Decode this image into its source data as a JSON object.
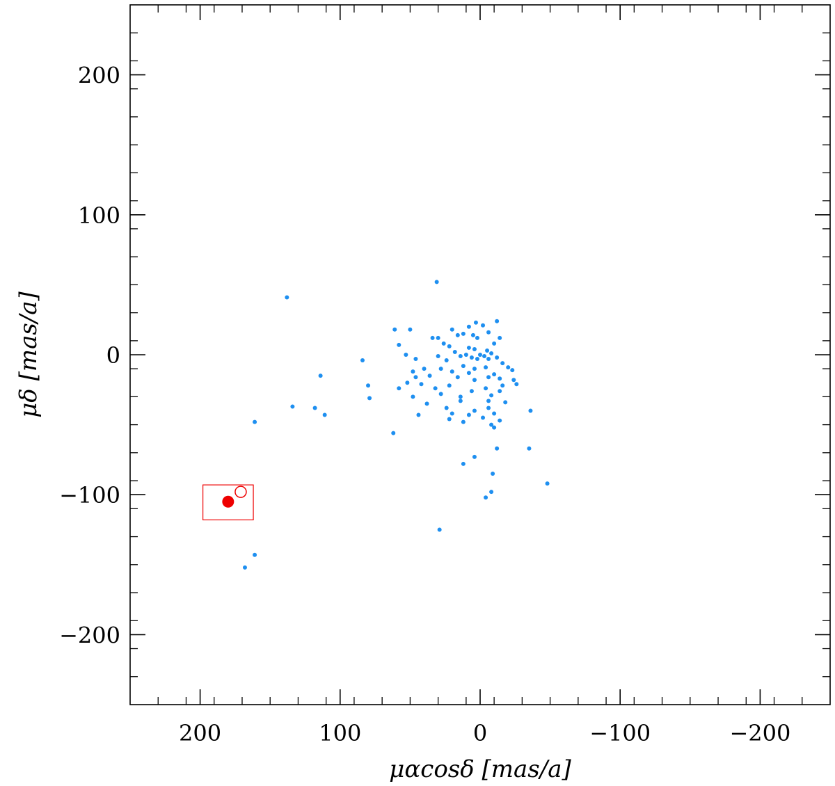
{
  "chart_data": {
    "type": "scatter",
    "title": "",
    "xlabel": "μαcosδ [mas/a]",
    "ylabel": "μδ [mas/a]",
    "xlim": [
      250,
      -250
    ],
    "ylim": [
      -250,
      250
    ],
    "x_reversed": true,
    "grid": false,
    "major_ticks": [
      200,
      100,
      0,
      -100,
      -200
    ],
    "minor_tick_step": 20,
    "x_tick_labels": [
      "200",
      "100",
      "0",
      "−100",
      "−200"
    ],
    "y_tick_labels": [
      "200",
      "100",
      "0",
      "−100",
      "−200"
    ],
    "colors": {
      "stars": "#1e8ff0",
      "target": "#ee0000",
      "axes": "#000000"
    },
    "series": [
      {
        "marker": "small-filled-dot",
        "color": "#1e8ff0",
        "points": [
          [
            31,
            52
          ],
          [
            138,
            41
          ],
          [
            3,
            23
          ],
          [
            -12,
            24
          ],
          [
            -2,
            21
          ],
          [
            8,
            20
          ],
          [
            20,
            18
          ],
          [
            61,
            18
          ],
          [
            50,
            18
          ],
          [
            34,
            12
          ],
          [
            12,
            15
          ],
          [
            30,
            12
          ],
          [
            -6,
            16
          ],
          [
            16,
            14
          ],
          [
            5,
            14
          ],
          [
            -14,
            12
          ],
          [
            2,
            12
          ],
          [
            -10,
            8
          ],
          [
            58,
            7
          ],
          [
            22,
            6
          ],
          [
            26,
            8
          ],
          [
            8,
            5
          ],
          [
            -5,
            3
          ],
          [
            4,
            4
          ],
          [
            53,
            0
          ],
          [
            18,
            2
          ],
          [
            -8,
            1
          ],
          [
            0,
            0
          ],
          [
            10,
            0
          ],
          [
            -3,
            -1
          ],
          [
            6,
            -2
          ],
          [
            2,
            -3
          ],
          [
            -6,
            -3
          ],
          [
            14,
            -1
          ],
          [
            -12,
            -2
          ],
          [
            24,
            -4
          ],
          [
            30,
            -1
          ],
          [
            46,
            -3
          ],
          [
            -16,
            -6
          ],
          [
            -20,
            -9
          ],
          [
            -23,
            -11
          ],
          [
            12,
            -8
          ],
          [
            4,
            -10
          ],
          [
            -4,
            -9
          ],
          [
            8,
            -13
          ],
          [
            -10,
            -14
          ],
          [
            20,
            -12
          ],
          [
            28,
            -10
          ],
          [
            84,
            -4
          ],
          [
            40,
            -10
          ],
          [
            48,
            -12
          ],
          [
            36,
            -15
          ],
          [
            16,
            -16
          ],
          [
            -14,
            -17
          ],
          [
            -24,
            -18
          ],
          [
            -26,
            -21
          ],
          [
            4,
            -18
          ],
          [
            -6,
            -16
          ],
          [
            46,
            -16
          ],
          [
            114,
            -15
          ],
          [
            52,
            -20
          ],
          [
            42,
            -21
          ],
          [
            80,
            -22
          ],
          [
            58,
            -24
          ],
          [
            32,
            -24
          ],
          [
            22,
            -22
          ],
          [
            -4,
            -24
          ],
          [
            -16,
            -22
          ],
          [
            6,
            -26
          ],
          [
            28,
            -28
          ],
          [
            48,
            -30
          ],
          [
            14,
            -30
          ],
          [
            -8,
            -29
          ],
          [
            -14,
            -26
          ],
          [
            79,
            -31
          ],
          [
            -6,
            -33
          ],
          [
            14,
            -33
          ],
          [
            38,
            -35
          ],
          [
            24,
            -38
          ],
          [
            -18,
            -34
          ],
          [
            134,
            -37
          ],
          [
            118,
            -38
          ],
          [
            -6,
            -38
          ],
          [
            4,
            -40
          ],
          [
            -10,
            -42
          ],
          [
            -36,
            -40
          ],
          [
            111,
            -43
          ],
          [
            44,
            -43
          ],
          [
            20,
            -42
          ],
          [
            8,
            -43
          ],
          [
            -2,
            -45
          ],
          [
            22,
            -46
          ],
          [
            -14,
            -47
          ],
          [
            -8,
            -50
          ],
          [
            12,
            -48
          ],
          [
            161,
            -48
          ],
          [
            62,
            -56
          ],
          [
            -10,
            -52
          ],
          [
            -12,
            -67
          ],
          [
            -35,
            -67
          ],
          [
            12,
            -78
          ],
          [
            4,
            -73
          ],
          [
            -9,
            -85
          ],
          [
            -48,
            -92
          ],
          [
            -8,
            -98
          ],
          [
            -4,
            -102
          ],
          [
            29,
            -125
          ],
          [
            161,
            -143
          ],
          [
            168,
            -152
          ]
        ]
      },
      {
        "marker": "large-filled-circle",
        "color": "#ee0000",
        "points": [
          [
            180,
            -105
          ]
        ]
      },
      {
        "marker": "large-open-circle",
        "color": "#ee0000",
        "points": [
          [
            171,
            -98
          ]
        ]
      }
    ],
    "annotations": [
      {
        "shape": "rectangle",
        "color": "#ee0000",
        "x_range": [
          198,
          162
        ],
        "y_range": [
          -93,
          -118
        ]
      }
    ]
  }
}
